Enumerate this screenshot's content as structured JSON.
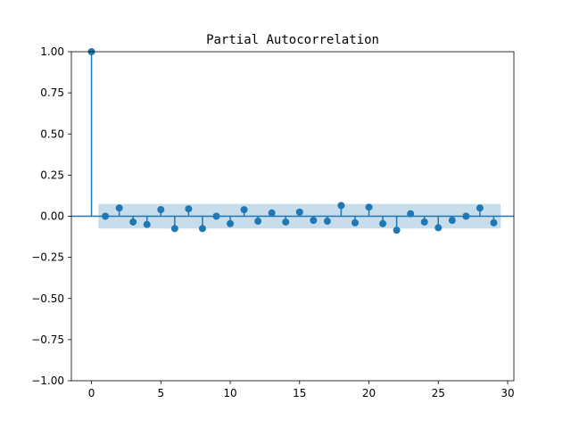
{
  "chart_data": {
    "type": "stem",
    "title": "Partial Autocorrelation",
    "xlabel": "",
    "ylabel": "",
    "xlim": [
      -1.45,
      30.45
    ],
    "ylim": [
      -1.0,
      1.0
    ],
    "x_ticks": [
      0,
      5,
      10,
      15,
      20,
      25,
      30
    ],
    "y_ticks": [
      -1.0,
      -0.75,
      -0.5,
      -0.25,
      0.0,
      0.25,
      0.5,
      0.75,
      1.0
    ],
    "x_tick_labels": [
      "0",
      "5",
      "10",
      "15",
      "20",
      "25",
      "30"
    ],
    "y_tick_labels": [
      "−1.00",
      "−0.75",
      "−0.50",
      "−0.25",
      "0.00",
      "0.25",
      "0.50",
      "0.75",
      "1.00"
    ],
    "grid": false,
    "legend": "none",
    "confidence_band": {
      "x_range": [
        0.5,
        29.5
      ],
      "lower": -0.075,
      "upper": 0.075
    },
    "lags": [
      0,
      1,
      2,
      3,
      4,
      5,
      6,
      7,
      8,
      9,
      10,
      11,
      12,
      13,
      14,
      15,
      16,
      17,
      18,
      19,
      20,
      21,
      22,
      23,
      24,
      25,
      26,
      27,
      28,
      29
    ],
    "values": [
      1.0,
      0.0,
      0.05,
      -0.035,
      -0.05,
      0.04,
      -0.075,
      0.045,
      -0.075,
      0.0,
      -0.045,
      0.04,
      -0.03,
      0.02,
      -0.035,
      0.025,
      -0.025,
      -0.03,
      0.065,
      -0.04,
      0.055,
      -0.045,
      -0.085,
      0.015,
      -0.035,
      -0.07,
      -0.025,
      0.0,
      0.05,
      -0.04
    ],
    "colors": {
      "stem": "#1f77b4",
      "band": "#1f77b4",
      "zero_line": "#1f77b4"
    }
  }
}
